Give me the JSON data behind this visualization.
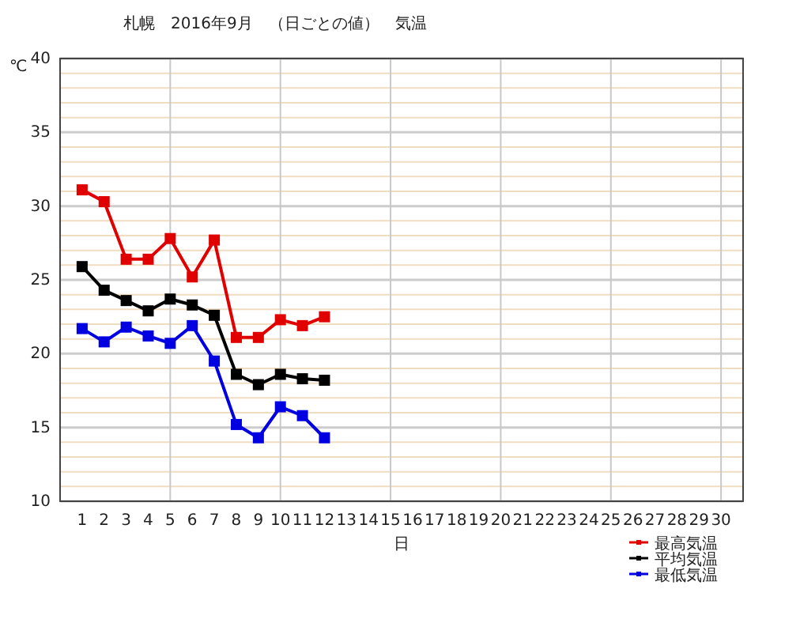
{
  "chart_data": {
    "type": "line",
    "title": "札幌　2016年9月　（日ごとの値）　気温",
    "xlabel": "日",
    "ylabel": "℃",
    "x": [
      1,
      2,
      3,
      4,
      5,
      6,
      7,
      8,
      9,
      10,
      11,
      12
    ],
    "xlim": [
      0,
      31
    ],
    "xticks": [
      1,
      2,
      3,
      4,
      5,
      6,
      7,
      8,
      9,
      10,
      11,
      12,
      13,
      14,
      15,
      16,
      17,
      18,
      19,
      20,
      21,
      22,
      23,
      24,
      25,
      26,
      27,
      28,
      29,
      30
    ],
    "ylim": [
      10,
      40
    ],
    "yticks": [
      10,
      {
        "value": 11,
        "label": null
      },
      {
        "value": 12,
        "label": null
      },
      {
        "value": 13,
        "label": null
      },
      {
        "value": 14,
        "label": null
      },
      15,
      {
        "value": 16,
        "label": null
      },
      {
        "value": 17,
        "label": null
      },
      {
        "value": 18,
        "label": null
      },
      {
        "value": 19,
        "label": null
      },
      20,
      {
        "value": 21,
        "label": null
      },
      {
        "value": 22,
        "label": null
      },
      {
        "value": 23,
        "label": null
      },
      {
        "value": 24,
        "label": null
      },
      25,
      {
        "value": 26,
        "label": null
      },
      {
        "value": 27,
        "label": null
      },
      {
        "value": 28,
        "label": null
      },
      {
        "value": 29,
        "label": null
      },
      30,
      {
        "value": 31,
        "label": null
      },
      {
        "value": 32,
        "label": null
      },
      {
        "value": 33,
        "label": null
      },
      {
        "value": 34,
        "label": null
      },
      35,
      {
        "value": 36,
        "label": null
      },
      {
        "value": 37,
        "label": null
      },
      {
        "value": 38,
        "label": null
      },
      {
        "value": 39,
        "label": null
      },
      40
    ],
    "grid": true,
    "legend": "bottom right",
    "marker": "square",
    "line_style": "solid",
    "series": [
      {
        "name": "最高気温",
        "color": "#e00000",
        "values": [
          31.1,
          30.3,
          26.4,
          26.4,
          27.8,
          25.2,
          27.7,
          21.1,
          21.1,
          22.3,
          21.9,
          22.5
        ]
      },
      {
        "name": "平均気温",
        "color": "#000000",
        "values": [
          25.9,
          24.3,
          23.6,
          22.9,
          23.7,
          23.3,
          22.6,
          18.6,
          17.9,
          18.6,
          18.3,
          18.2
        ]
      },
      {
        "name": "最低気温",
        "color": "#0000e0",
        "values": [
          21.7,
          20.8,
          21.8,
          21.2,
          20.7,
          21.9,
          19.5,
          15.2,
          14.3,
          16.4,
          15.8,
          14.3
        ]
      }
    ]
  }
}
